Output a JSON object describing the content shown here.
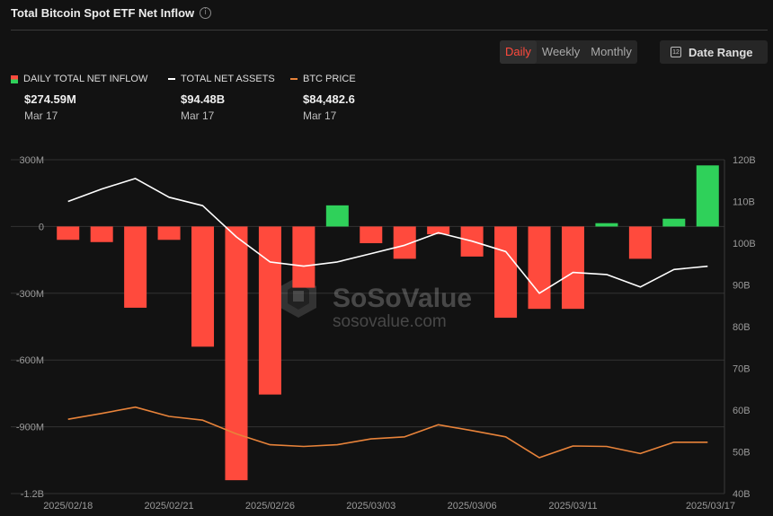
{
  "header": {
    "title": "Total Bitcoin Spot ETF Net Inflow",
    "info_icon": "info-icon"
  },
  "period_tabs": [
    {
      "label": "Daily",
      "active": true
    },
    {
      "label": "Weekly",
      "active": false
    },
    {
      "label": "Monthly",
      "active": false
    }
  ],
  "date_range": {
    "label": "Date Range",
    "icon": "calendar-icon"
  },
  "legend": [
    {
      "name": "DAILY TOTAL NET INFLOW",
      "value": "$274.59M",
      "date": "Mar 17"
    },
    {
      "name": "TOTAL NET ASSETS",
      "value": "$94.48B",
      "date": "Mar 17"
    },
    {
      "name": "BTC PRICE",
      "value": "$84,482.6",
      "date": "Mar 17"
    }
  ],
  "watermark": {
    "brand": "SoSoValue",
    "site": "sosovalue.com"
  },
  "colors": {
    "background": "#121212",
    "inflow_positive": "#2fd15a",
    "inflow_negative": "#ff4a3d",
    "net_assets_line": "#ffffff",
    "btc_price_line": "#e8833a",
    "active_tab": "#ff4a3d"
  },
  "chart_data": {
    "type": "bar",
    "dates": [
      "2025-02-18",
      "2025-02-19",
      "2025-02-20",
      "2025-02-21",
      "2025-02-24",
      "2025-02-25",
      "2025-02-26",
      "2025-02-27",
      "2025-02-28",
      "2025-03-03",
      "2025-03-04",
      "2025-03-05",
      "2025-03-06",
      "2025-03-07",
      "2025-03-10",
      "2025-03-11",
      "2025-03-12",
      "2025-03-13",
      "2025-03-14",
      "2025-03-17"
    ],
    "x_tick_labels": [
      "2025/02/18",
      "2025/02/21",
      "2025/02/26",
      "2025/03/03",
      "2025/03/06",
      "2025/03/11",
      "2025/03/17"
    ],
    "x_tick_indices": [
      0,
      3,
      6,
      9,
      12,
      15,
      19
    ],
    "left_axis": {
      "ticks": [
        "300M",
        "0",
        "-300M",
        "-600M",
        "-900M",
        "-1.2B"
      ],
      "values": [
        300,
        0,
        -300,
        -600,
        -900,
        -1200
      ],
      "unit": "M",
      "range": [
        -1200,
        300
      ]
    },
    "right_axis": {
      "ticks": [
        "120B",
        "110B",
        "100B",
        "90B",
        "80B",
        "70B",
        "60B",
        "50B",
        "40B"
      ],
      "values": [
        120,
        110,
        100,
        90,
        80,
        70,
        60,
        50,
        40
      ],
      "unit": "B",
      "range": [
        40,
        120
      ]
    },
    "series": [
      {
        "name": "DAILY TOTAL NET INFLOW",
        "type": "bar",
        "axis": "left",
        "values": [
          -60,
          -70,
          -365,
          -60,
          -540,
          -1140,
          -755,
          -275,
          95,
          -75,
          -145,
          -35,
          -135,
          -410,
          -370,
          -370,
          15,
          -145,
          35,
          274.59
        ]
      },
      {
        "name": "TOTAL NET ASSETS",
        "type": "line",
        "axis": "right",
        "values": [
          110,
          113,
          115.5,
          111,
          109,
          101.5,
          95.5,
          94.5,
          95.5,
          97.5,
          99.5,
          102.5,
          100.5,
          98,
          88,
          93,
          92.5,
          89.5,
          93.7,
          94.48
        ]
      },
      {
        "name": "BTC PRICE",
        "type": "line",
        "axis": "right",
        "values": [
          57.8,
          59.2,
          60.7,
          58.5,
          57.6,
          54.3,
          51.7,
          51.3,
          51.7,
          53.1,
          53.6,
          56.5,
          55.1,
          53.6,
          48.6,
          51.4,
          51.3,
          49.6,
          52.3,
          52.3
        ]
      }
    ],
    "grid": true,
    "legend_position": "top-left"
  }
}
